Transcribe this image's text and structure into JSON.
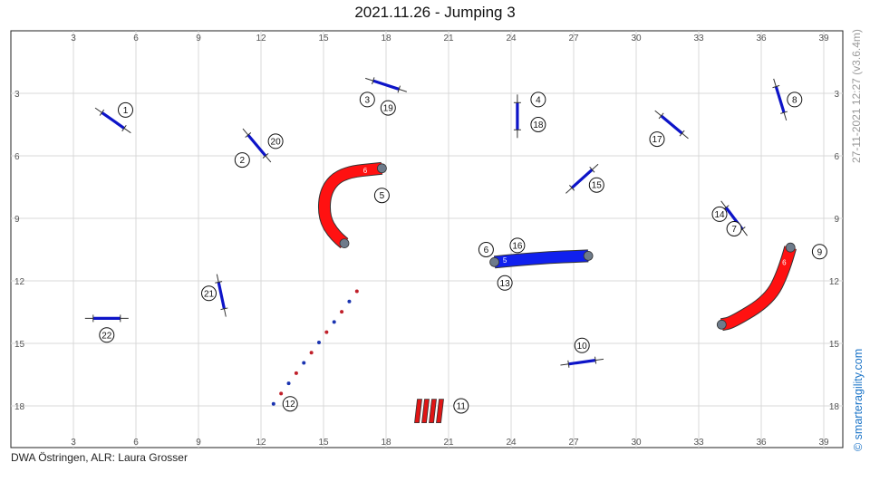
{
  "title": "2021.11.26 - Jumping 3",
  "footer": "DWA Östringen,  ALR: Laura Grosser",
  "side_meta": "27-11-2021 12:27 (v3.6.4m)",
  "brand": "© smarteragility.com",
  "axis": {
    "x_ticks": [
      "3",
      "6",
      "9",
      "12",
      "15",
      "18",
      "21",
      "24",
      "27",
      "30",
      "33",
      "36",
      "39"
    ],
    "y_ticks": [
      "3",
      "6",
      "9",
      "12",
      "15",
      "18"
    ]
  },
  "colors": {
    "jump_bar": "#0d14c8",
    "tunnel_red": "#ff1111",
    "tunnel_blue": "#1020ee",
    "tunnel_end": "#6e7b8b",
    "grid": "#d9d9d9",
    "weave_blue": "#1a33b0",
    "weave_red": "#c0202a",
    "tire_red": "#e01515"
  },
  "obstacles": {
    "jumps": [
      {
        "id": "jump-1",
        "x": 4.9,
        "y": 4.3,
        "angle": 35
      },
      {
        "id": "jump-2-20",
        "x": 11.8,
        "y": 5.5,
        "angle": 50
      },
      {
        "id": "jump-3-19",
        "x": 18.0,
        "y": 2.6,
        "angle": 18
      },
      {
        "id": "jump-4-18",
        "x": 24.3,
        "y": 4.1,
        "angle": 90
      },
      {
        "id": "jump-15",
        "x": 27.4,
        "y": 7.1,
        "angle": -42
      },
      {
        "id": "jump-17",
        "x": 31.7,
        "y": 4.5,
        "angle": 40
      },
      {
        "id": "jump-8",
        "x": 36.9,
        "y": 3.3,
        "angle": 73
      },
      {
        "id": "jump-14-7",
        "x": 34.7,
        "y": 9.0,
        "angle": 53
      },
      {
        "id": "jump-21",
        "x": 10.1,
        "y": 12.7,
        "angle": 78
      },
      {
        "id": "jump-22",
        "x": 4.6,
        "y": 13.8,
        "angle": 0
      },
      {
        "id": "jump-10",
        "x": 27.4,
        "y": 15.9,
        "angle": -8
      }
    ],
    "tunnels": [
      {
        "id": "tunnel-5",
        "label": "6",
        "color": "red",
        "d": [
          [
            16.0,
            10.2
          ],
          [
            15.5,
            9.8
          ],
          [
            15.0,
            8.9
          ],
          [
            15.1,
            7.6
          ],
          [
            15.9,
            6.8
          ],
          [
            17.8,
            6.6
          ]
        ],
        "lx": 17.0,
        "ly": 6.7
      },
      {
        "id": "tunnel-6-16-13",
        "label": "5",
        "color": "blue",
        "d": [
          [
            23.2,
            11.1
          ],
          [
            25.3,
            10.9
          ],
          [
            27.7,
            10.8
          ]
        ],
        "lx": 23.7,
        "ly": 11.0
      },
      {
        "id": "tunnel-9",
        "label": "6",
        "color": "red",
        "d": [
          [
            37.4,
            10.4
          ],
          [
            37.1,
            11.5
          ],
          [
            36.4,
            12.9
          ],
          [
            34.6,
            14.0
          ],
          [
            34.1,
            14.1
          ]
        ],
        "lx": 37.1,
        "ly": 11.1
      }
    ],
    "weave": {
      "id": "weave-12",
      "x1": 12.6,
      "y1": 17.9,
      "x2": 16.6,
      "y2": 12.5,
      "poles": 12
    },
    "tire": {
      "id": "tire-11",
      "x": 20.5,
      "y": 18.2
    }
  },
  "numbers": [
    {
      "n": "1",
      "x": 5.5,
      "y": 3.8
    },
    {
      "n": "2",
      "x": 11.1,
      "y": 6.2
    },
    {
      "n": "20",
      "x": 12.7,
      "y": 5.3
    },
    {
      "n": "3",
      "x": 17.1,
      "y": 3.3
    },
    {
      "n": "19",
      "x": 18.1,
      "y": 3.7
    },
    {
      "n": "4",
      "x": 25.3,
      "y": 3.3
    },
    {
      "n": "18",
      "x": 25.3,
      "y": 4.5
    },
    {
      "n": "5",
      "x": 17.8,
      "y": 7.9
    },
    {
      "n": "6",
      "x": 22.8,
      "y": 10.5
    },
    {
      "n": "16",
      "x": 24.3,
      "y": 10.3
    },
    {
      "n": "13",
      "x": 23.7,
      "y": 12.1
    },
    {
      "n": "15",
      "x": 28.1,
      "y": 7.4
    },
    {
      "n": "17",
      "x": 31.0,
      "y": 5.2
    },
    {
      "n": "8",
      "x": 37.6,
      "y": 3.3
    },
    {
      "n": "14",
      "x": 34.0,
      "y": 8.8
    },
    {
      "n": "7",
      "x": 34.7,
      "y": 9.5
    },
    {
      "n": "9",
      "x": 38.8,
      "y": 10.6
    },
    {
      "n": "21",
      "x": 9.5,
      "y": 12.6
    },
    {
      "n": "22",
      "x": 4.6,
      "y": 14.6
    },
    {
      "n": "10",
      "x": 27.4,
      "y": 15.1
    },
    {
      "n": "12",
      "x": 13.4,
      "y": 17.9
    },
    {
      "n": "11",
      "x": 21.6,
      "y": 18.0
    }
  ]
}
